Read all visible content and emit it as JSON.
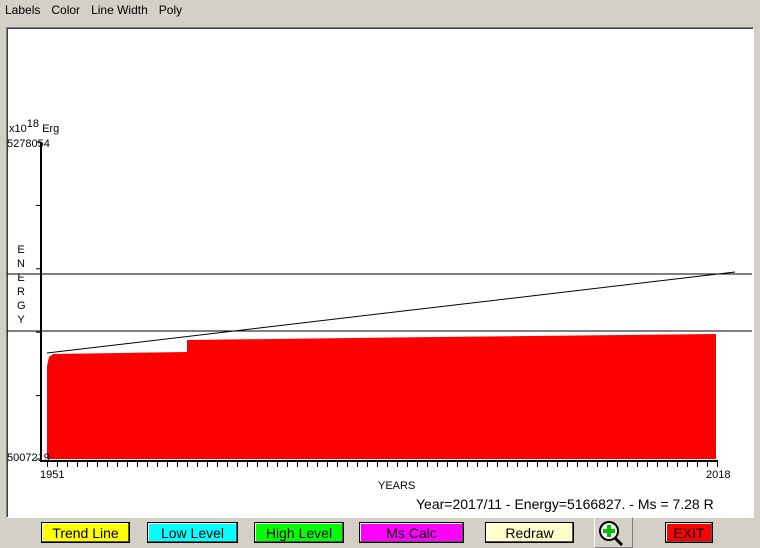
{
  "menu": [
    "Labels",
    "Color",
    "Line Width",
    "Poly"
  ],
  "chart_data": {
    "type": "area",
    "ylabel": "ENERGY",
    "y_unit_prefix": "x10",
    "y_unit_exponent": "18",
    "y_unit": "Erg",
    "xlabel": "YEARS",
    "ylim": [
      5007219,
      5278054
    ],
    "y_tick_labels": {
      "top": "5278054",
      "bottom": "5007219"
    },
    "xlim": [
      1951,
      2018
    ],
    "x_tick_labels": {
      "left": "1951",
      "right": "2018"
    },
    "series": [
      {
        "type": "area",
        "color": "#ff0000",
        "points": [
          [
            1951.0,
            5086678
          ],
          [
            1951.2,
            5094368
          ],
          [
            1951.6,
            5096931
          ],
          [
            1965.0,
            5098640
          ],
          [
            1965.0,
            5108893
          ],
          [
            1990.0,
            5111456
          ],
          [
            2017.9,
            5114019
          ]
        ]
      }
    ],
    "trend_line": {
      "points": [
        [
          1951.0,
          5097786
        ],
        [
          2019.8,
          5166992
        ]
      ],
      "color": "#000000"
    },
    "low_level": 5116579,
    "high_level": 5165283,
    "grid": false
  },
  "status": "Year=2017/11 - Energy=5166827. - Ms = 7.28 R",
  "buttons": [
    {
      "label": "Trend Line",
      "color": "#ffff00",
      "text": "#000000"
    },
    {
      "label": "Low Level",
      "color": "#00ffff",
      "text": "#000000"
    },
    {
      "label": "High Level",
      "color": "#00ff00",
      "text": "#000000"
    },
    {
      "label": "Ms Calc",
      "color": "#ff00ff",
      "text": "#000000"
    },
    {
      "label": "Redraw",
      "color": "#ffffcc",
      "text": "#000000"
    },
    {
      "label": "EXIT",
      "color": "#ff0000",
      "text": "#000000"
    }
  ],
  "zoom_icon": "zoom-in-magnifier-icon"
}
